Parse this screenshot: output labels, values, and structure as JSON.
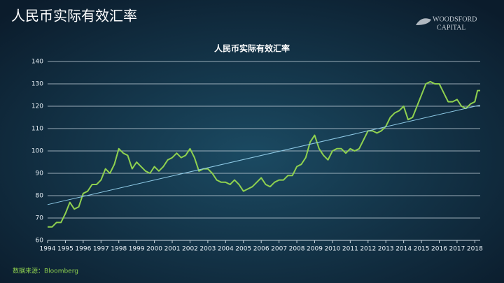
{
  "header": {
    "title": "人民币实际有效汇率",
    "logo_line1": "WOODSFORD",
    "logo_line2": "CAPITAL"
  },
  "chart_data": {
    "type": "line",
    "title": "人民币实际有效汇率",
    "series": [
      {
        "color": "#8fd14f",
        "x": [
          1994.0,
          1994.25,
          1994.5,
          1994.75,
          1995.0,
          1995.25,
          1995.5,
          1995.75,
          1996.0,
          1996.25,
          1996.5,
          1996.75,
          1997.0,
          1997.25,
          1997.5,
          1997.75,
          1998.0,
          1998.25,
          1998.5,
          1998.75,
          1999.0,
          1999.25,
          1999.5,
          1999.75,
          2000.0,
          2000.25,
          2000.5,
          2000.75,
          2001.0,
          2001.25,
          2001.5,
          2001.75,
          2002.0,
          2002.25,
          2002.5,
          2002.75,
          2003.0,
          2003.25,
          2003.5,
          2003.75,
          2004.0,
          2004.25,
          2004.5,
          2004.75,
          2005.0,
          2005.25,
          2005.5,
          2005.75,
          2006.0,
          2006.25,
          2006.5,
          2006.75,
          2007.0,
          2007.25,
          2007.5,
          2007.75,
          2008.0,
          2008.25,
          2008.5,
          2008.75,
          2009.0,
          2009.25,
          2009.5,
          2009.75,
          2010.0,
          2010.25,
          2010.5,
          2010.75,
          2011.0,
          2011.25,
          2011.5,
          2011.75,
          2012.0,
          2012.25,
          2012.5,
          2012.75,
          2013.0,
          2013.25,
          2013.5,
          2013.75,
          2014.0,
          2014.25,
          2014.5,
          2014.75,
          2015.0,
          2015.25,
          2015.5,
          2015.75,
          2016.0,
          2016.25,
          2016.5,
          2016.75,
          2017.0,
          2017.25,
          2017.5,
          2017.75,
          2018.0,
          2018.15,
          2018.3
        ],
        "values": [
          66,
          66,
          68,
          68,
          72,
          77,
          74,
          75,
          81,
          82,
          85,
          85,
          87,
          92,
          90,
          94,
          101,
          99,
          98,
          92,
          95,
          93,
          91,
          90,
          93,
          91,
          93,
          96,
          97,
          99,
          97,
          98,
          101,
          97,
          91,
          92,
          92,
          90,
          87,
          86,
          86,
          85,
          87,
          85,
          82,
          83,
          84,
          86,
          88,
          85,
          84,
          86,
          87,
          87,
          89,
          89,
          93,
          94,
          97,
          104,
          107,
          101,
          98,
          96,
          100,
          101,
          101,
          99,
          101,
          100,
          101,
          105,
          109,
          109,
          108,
          109,
          111,
          115,
          117,
          118,
          120,
          114,
          115,
          120,
          125,
          130,
          131,
          130,
          130,
          126,
          122,
          122,
          123,
          120,
          119,
          121,
          122,
          127,
          127
        ]
      },
      {
        "color": "#8ecae6",
        "x": [
          1994.0,
          2018.3
        ],
        "values": [
          76,
          120.5
        ]
      }
    ],
    "xlim": [
      1994,
      2018.3
    ],
    "xticks": [
      1994,
      1995,
      1996,
      1997,
      1998,
      1999,
      2000,
      2001,
      2002,
      2003,
      2004,
      2005,
      2006,
      2007,
      2008,
      2009,
      2010,
      2011,
      2012,
      2013,
      2014,
      2015,
      2016,
      2017,
      2018
    ],
    "ylim": [
      60,
      140
    ],
    "yticks": [
      60,
      70,
      80,
      90,
      100,
      110,
      120,
      130,
      140
    ],
    "grid": true
  },
  "source": "数据来源：Bloomberg"
}
